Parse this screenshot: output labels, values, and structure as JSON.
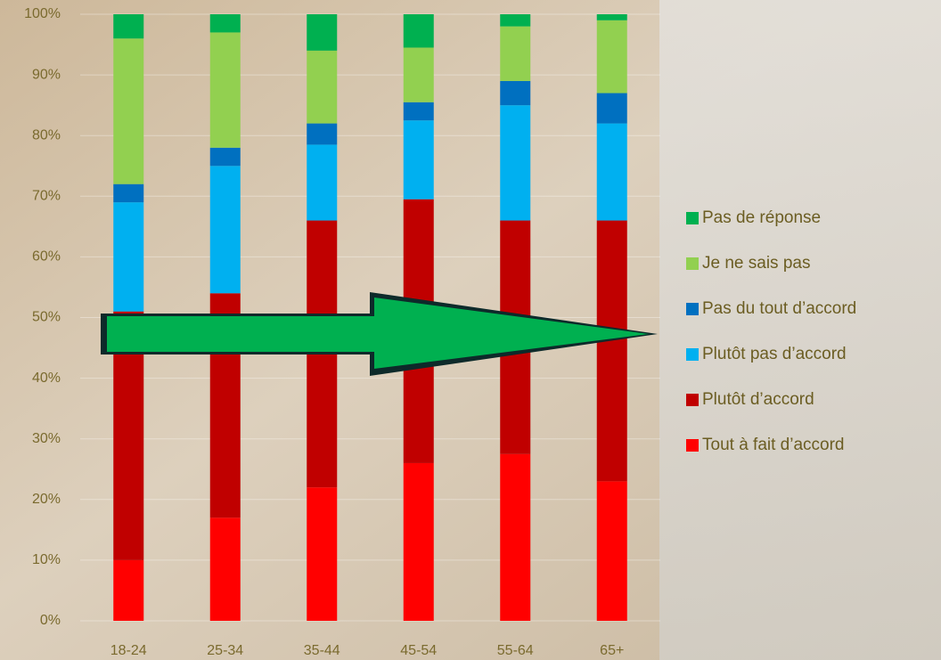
{
  "chart_data": {
    "type": "stacked_bar",
    "categories": [
      "18-24",
      "25-34",
      "35-44",
      "45-54",
      "55-64",
      "65+"
    ],
    "series": [
      {
        "name": "Tout à fait d’accord",
        "color": "#ff0000",
        "values": [
          10,
          17,
          22,
          26,
          27.5,
          23
        ]
      },
      {
        "name": "Plutôt d’accord",
        "color": "#c00000",
        "values": [
          41,
          37,
          44,
          43.5,
          38.5,
          43
        ]
      },
      {
        "name": "Plutôt pas d’accord",
        "color": "#00b0f0",
        "values": [
          18,
          21,
          12.5,
          13,
          19,
          16
        ]
      },
      {
        "name": "Pas du tout d’accord",
        "color": "#0070c0",
        "values": [
          3,
          3,
          3.5,
          3,
          4,
          5
        ]
      },
      {
        "name": "Je ne sais pas",
        "color": "#92d050",
        "values": [
          24,
          19,
          12,
          9,
          9,
          12
        ]
      },
      {
        "name": "Pas de réponse",
        "color": "#00b050",
        "values": [
          4,
          3,
          6,
          5.5,
          2,
          1
        ]
      }
    ],
    "ylim": [
      0,
      100
    ],
    "yticks": [
      {
        "value": 0,
        "label": "0%"
      },
      {
        "value": 10,
        "label": "10%"
      },
      {
        "value": 20,
        "label": "20%"
      },
      {
        "value": 30,
        "label": "30%"
      },
      {
        "value": 40,
        "label": "40%"
      },
      {
        "value": 50,
        "label": "50%"
      },
      {
        "value": 60,
        "label": "60%"
      },
      {
        "value": 70,
        "label": "70%"
      },
      {
        "value": 80,
        "label": "80%"
      },
      {
        "value": 90,
        "label": "90%"
      },
      {
        "value": 100,
        "label": "100%"
      }
    ],
    "grid": true,
    "legend": "right"
  }
}
